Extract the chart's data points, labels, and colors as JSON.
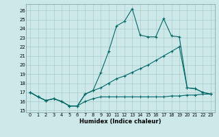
{
  "xlabel": "Humidex (Indice chaleur)",
  "bg_color": "#cce8e8",
  "grid_color": "#aacccc",
  "line_color": "#006666",
  "xlim": [
    -0.5,
    23.5
  ],
  "ylim": [
    14.8,
    26.7
  ],
  "yticks": [
    15,
    16,
    17,
    18,
    19,
    20,
    21,
    22,
    23,
    24,
    25,
    26
  ],
  "xticks": [
    0,
    1,
    2,
    3,
    4,
    5,
    6,
    7,
    8,
    9,
    10,
    11,
    12,
    13,
    14,
    15,
    16,
    17,
    18,
    19,
    20,
    21,
    22,
    23
  ],
  "line1_x": [
    0,
    1,
    2,
    3,
    4,
    5,
    6,
    7,
    8,
    9,
    10,
    11,
    12,
    13,
    14,
    15,
    16,
    17,
    18,
    19,
    20,
    21,
    22,
    23
  ],
  "line1_y": [
    17.0,
    16.5,
    16.1,
    16.3,
    16.0,
    15.5,
    15.5,
    16.0,
    16.3,
    16.5,
    16.5,
    16.5,
    16.5,
    16.5,
    16.5,
    16.5,
    16.5,
    16.5,
    16.6,
    16.6,
    16.7,
    16.7,
    16.8,
    16.8
  ],
  "line2_x": [
    0,
    1,
    2,
    3,
    4,
    5,
    6,
    7,
    8,
    9,
    10,
    11,
    12,
    13,
    14,
    15,
    16,
    17,
    18,
    19,
    20,
    21,
    22,
    23
  ],
  "line2_y": [
    17.0,
    16.5,
    16.1,
    16.3,
    16.0,
    15.5,
    15.5,
    16.8,
    17.2,
    19.2,
    21.5,
    24.3,
    24.8,
    26.2,
    23.3,
    23.1,
    23.1,
    25.1,
    23.2,
    23.1,
    17.5,
    17.4,
    17.0,
    16.8
  ],
  "line3_x": [
    0,
    1,
    2,
    3,
    4,
    5,
    6,
    7,
    8,
    9,
    10,
    11,
    12,
    13,
    14,
    15,
    16,
    17,
    18,
    19,
    20,
    21,
    22,
    23
  ],
  "line3_y": [
    17.0,
    16.5,
    16.1,
    16.3,
    16.0,
    15.5,
    15.5,
    16.8,
    17.2,
    17.5,
    18.0,
    18.5,
    18.8,
    19.2,
    19.6,
    20.0,
    20.5,
    21.0,
    21.5,
    22.0,
    17.5,
    17.4,
    17.0,
    16.8
  ]
}
